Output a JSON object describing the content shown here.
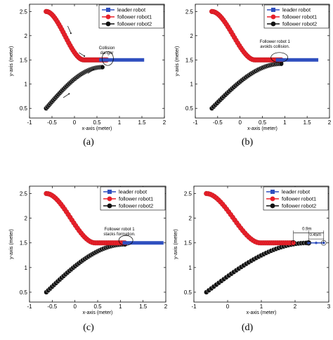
{
  "chart_data": [
    {
      "type": "scatter",
      "caption": "(a)",
      "xlabel": "x-axis (meter)",
      "ylabel": "y-axis (meter)",
      "xlim": [
        -1,
        2
      ],
      "ylim": [
        0.3,
        2.65
      ],
      "xticks": [
        "-1",
        "-0.5",
        "0",
        "0.5",
        "1",
        "1.5",
        "2"
      ],
      "yticks": [
        "0.5",
        "1",
        "1.5",
        "2",
        "2.5"
      ],
      "legend": [
        "leader robot",
        "follower robot1",
        "follower robot2"
      ],
      "legend_position": "top-right",
      "annotations": [
        {
          "text": "Collision danger",
          "x": 0.72,
          "y": 1.72
        }
      ],
      "leader": {
        "x_start": 0.55,
        "x_end": 1.55,
        "y": 1.5
      },
      "follower1": {
        "x_start": -0.63,
        "x_end": 0.72,
        "y_start": 2.5,
        "y_end": 1.5
      },
      "follower2": {
        "x_start": -0.63,
        "x_end": 0.62,
        "y_start": 0.5,
        "y_end": 1.35
      }
    },
    {
      "type": "scatter",
      "caption": "(b)",
      "xlabel": "x-axis (meter)",
      "ylabel": "y-axis (meter)",
      "xlim": [
        -1,
        2
      ],
      "ylim": [
        0.3,
        2.65
      ],
      "xticks": [
        "-1",
        "-0.5",
        "0",
        "0.5",
        "1",
        "1.5",
        "2"
      ],
      "yticks": [
        "0.5",
        "1",
        "1.5",
        "2",
        "2.5"
      ],
      "legend": [
        "leader robot",
        "follower robot1",
        "follower robot2"
      ],
      "legend_position": "top-right",
      "annotations": [
        {
          "text": "Follower robot 1 avoids collision.",
          "x": 0.78,
          "y": 1.85
        }
      ],
      "leader": {
        "x_start": 0.8,
        "x_end": 1.75,
        "y": 1.5
      },
      "follower1": {
        "x_start": -0.63,
        "x_end": 0.92,
        "y_start": 2.5,
        "y_end": 1.5
      },
      "follower2": {
        "x_start": -0.63,
        "x_end": 0.92,
        "y_start": 0.5,
        "y_end": 1.42
      }
    },
    {
      "type": "scatter",
      "caption": "(c)",
      "xlabel": "x-axis (meter)",
      "ylabel": "y-axis (meter)",
      "xlim": [
        -1,
        2
      ],
      "ylim": [
        0.3,
        2.65
      ],
      "xticks": [
        "-1",
        "-0.5",
        "0",
        "0.5",
        "1",
        "1.5",
        "2"
      ],
      "yticks": [
        "0.5",
        "1",
        "1.5",
        "2",
        "2.5"
      ],
      "legend": [
        "leader robot",
        "follower robot1",
        "follower robot2"
      ],
      "legend_position": "top-right",
      "annotations": [
        {
          "text": "Follower robot 1 stacks formation.",
          "x": 0.98,
          "y": 1.75
        }
      ],
      "leader": {
        "x_start": 1.05,
        "x_end": 1.95,
        "y": 1.5
      },
      "follower1": {
        "x_start": -0.63,
        "x_end": 1.1,
        "y_start": 2.5,
        "y_end": 1.5
      },
      "follower2": {
        "x_start": -0.63,
        "x_end": 1.1,
        "y_start": 0.5,
        "y_end": 1.47
      }
    },
    {
      "type": "scatter",
      "caption": "(d)",
      "xlabel": "x-axis (meter)",
      "ylabel": "y-axis (meter)",
      "xlim": [
        -1,
        3
      ],
      "ylim": [
        0.3,
        2.65
      ],
      "xticks": [
        "-1",
        "0",
        "1",
        "2",
        "3"
      ],
      "yticks": [
        "0.5",
        "1",
        "1.5",
        "2",
        "2.5"
      ],
      "legend": [
        "leader robot",
        "follower robot1",
        "follower robot2"
      ],
      "legend_position": "top-right",
      "annotations": [
        {
          "text": "0.9m",
          "x": 2.35,
          "y": 1.76
        },
        {
          "text": "0.45m",
          "x": 2.6,
          "y": 1.64
        }
      ],
      "leader": {
        "x_start": 2.4,
        "x_end": 2.85,
        "y": 1.5
      },
      "follower1": {
        "x_start": -0.63,
        "x_end": 1.95,
        "y_start": 2.5,
        "y_end": 1.5
      },
      "follower2": {
        "x_start": -0.63,
        "x_end": 2.4,
        "y_start": 0.5,
        "y_end": 1.5
      }
    }
  ],
  "colors": {
    "leader": "#2f4fbf",
    "follower1": "#e8202a",
    "follower2": "#111111"
  }
}
